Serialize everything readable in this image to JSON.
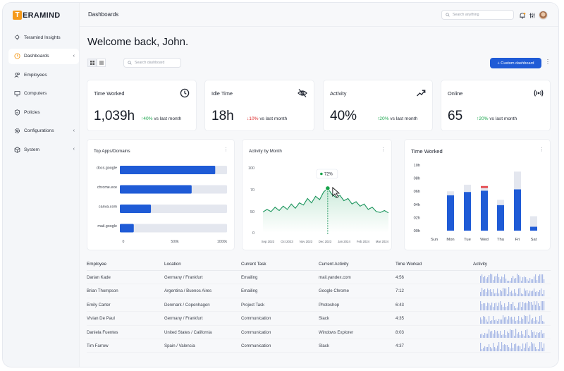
{
  "brand": {
    "logo_letter": "T",
    "logo_rest": "ERAMIND",
    "accent": "#f59a1b"
  },
  "sidebar": {
    "items": [
      {
        "label": "Teramind Insights",
        "icon": "lightbulb-icon",
        "active": false,
        "chevron": ""
      },
      {
        "label": "Dashboards",
        "icon": "clock-dashboard-icon",
        "active": true,
        "chevron": "‹"
      },
      {
        "label": "Employees",
        "icon": "users-icon",
        "active": false,
        "chevron": ""
      },
      {
        "label": "Computers",
        "icon": "monitor-icon",
        "active": false,
        "chevron": ""
      },
      {
        "label": "Policies",
        "icon": "shield-icon",
        "active": false,
        "chevron": ""
      },
      {
        "label": "Configurations",
        "icon": "gear-icon",
        "active": false,
        "chevron": "‹"
      },
      {
        "label": "System",
        "icon": "cube-icon",
        "active": false,
        "chevron": "‹"
      }
    ]
  },
  "header": {
    "title": "Dashboards",
    "search_placeholder": "Search anything",
    "icons": [
      "bell-icon",
      "sliders-icon",
      "avatar"
    ]
  },
  "welcome": "Welcome back, John.",
  "toolbar": {
    "search_placeholder": "Search dashboard",
    "custom_button": "+   Custom dashboard",
    "more": "⋮",
    "primary_color": "#1f5bd6"
  },
  "stats": [
    {
      "label": "Time Worked",
      "value": "1,039h",
      "change": "40%",
      "direction": "up",
      "suffix": "vs last month",
      "icon": "clock-icon"
    },
    {
      "label": "Idle Time",
      "value": "18h",
      "change": "10%",
      "direction": "down",
      "suffix": "vs last month",
      "icon": "eye-off-icon"
    },
    {
      "label": "Activity",
      "value": "40%",
      "change": "20%",
      "direction": "up",
      "suffix": "vs last month",
      "icon": "trend-up-icon"
    },
    {
      "label": "Online",
      "value": "65",
      "change": "20%",
      "direction": "up",
      "suffix": "vs last month",
      "icon": "broadcast-icon"
    }
  ],
  "arrows": {
    "up": "↑",
    "down": "↓"
  },
  "colors": {
    "up": "#17a34a",
    "down": "#dc2626",
    "bar": "#1f5bd6",
    "track": "#e4e7ef"
  },
  "panels": {
    "top_apps_title": "Top Apps/Domains",
    "activity_title": "Activity by Month",
    "time_worked_title": "Time Worked",
    "more": "⋮"
  },
  "chart_data": [
    {
      "type": "bar",
      "orientation": "horizontal",
      "title": "Top Apps/Domains",
      "categories": [
        "docs.google",
        "chrome.exe",
        "canva.com",
        "mail.google"
      ],
      "values": [
        890,
        670,
        290,
        130
      ],
      "xlim": [
        0,
        1000
      ],
      "x_ticks": [
        "0",
        "500k",
        "1000k"
      ]
    },
    {
      "type": "area",
      "title": "Activity by Month",
      "x_ticks": [
        "Sep 2023",
        "Oct 2023",
        "Nov 2023",
        "Dec 2023",
        "Jan 2024",
        "Feb 2024",
        "Mar 2024"
      ],
      "y_ticks": [
        "0",
        "50",
        "70",
        "100"
      ],
      "ylim": [
        0,
        100
      ],
      "highlight": {
        "label": "72%",
        "x_index": 3
      },
      "values": [
        49,
        52,
        50,
        54,
        51,
        55,
        52,
        57,
        53,
        58,
        56,
        62,
        58,
        64,
        61,
        68,
        72,
        66,
        63,
        65,
        60,
        62,
        57,
        59,
        55,
        57,
        52,
        54,
        50,
        48,
        51,
        47
      ]
    },
    {
      "type": "bar",
      "stacked": true,
      "title": "Time Worked",
      "categories": [
        "Sun",
        "Mon",
        "Tue",
        "Wed",
        "Thu",
        "Fri",
        "Sat"
      ],
      "y_ticks": [
        "00h",
        "02h",
        "04h",
        "06h",
        "08h",
        "10h"
      ],
      "ylim": [
        0,
        10
      ],
      "series": [
        {
          "values": [
            0,
            5.4,
            5.9,
            6.1,
            3.9,
            6.3,
            0.6
          ]
        },
        {
          "values": [
            0,
            0.6,
            1.1,
            0.4,
            0.8,
            2.7,
            1.6
          ]
        },
        {
          "values": [
            0,
            0,
            0,
            0.3,
            0,
            0,
            0
          ]
        }
      ]
    }
  ],
  "table": {
    "headers": [
      "Employee",
      "Location",
      "Current Task",
      "Current Activity",
      "Time Worked",
      "Activity"
    ],
    "rows": [
      [
        "Darian Kade",
        "Germany / Frankfurt",
        "Emailing",
        "mail.yandex.com",
        "4:56"
      ],
      [
        "Brian Thompson",
        "Argentina / Buenos Aires",
        "Emailing",
        "Google Chrome",
        "7:12"
      ],
      [
        "Emily Carter",
        "Denmark / Copenhagen",
        "Project Task",
        "Photoshop",
        "6:43"
      ],
      [
        "Vivian De Paul",
        "Germany / Frankfurt",
        "Communication",
        "Slack",
        "4:35"
      ],
      [
        "Daniela Fuentes",
        "United States / California",
        "Communication",
        "Windows Explorer",
        "8:03"
      ],
      [
        "Tim Farrow",
        "Spain / Valencia",
        "Communication",
        "Slack",
        "4:37"
      ]
    ]
  }
}
